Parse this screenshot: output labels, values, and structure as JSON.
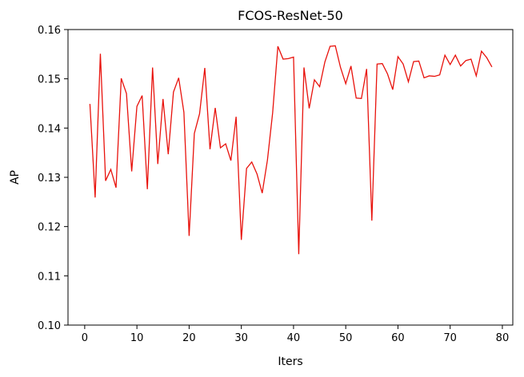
{
  "chart_data": {
    "type": "line",
    "title": "FCOS-ResNet-50",
    "xlabel": "Iters",
    "ylabel": "AP",
    "xlim": [
      -3.2,
      82
    ],
    "ylim": [
      0.1,
      0.16
    ],
    "xticks": [
      0,
      10,
      20,
      30,
      40,
      50,
      60,
      70,
      80
    ],
    "xtick_labels": [
      "0",
      "10",
      "20",
      "30",
      "40",
      "50",
      "60",
      "70",
      "80"
    ],
    "yticks": [
      0.1,
      0.11,
      0.12,
      0.13,
      0.14,
      0.15,
      0.16
    ],
    "ytick_labels": [
      "0.10",
      "0.11",
      "0.12",
      "0.13",
      "0.14",
      "0.15",
      "0.16"
    ],
    "grid": false,
    "color": "#e8120c",
    "series": [
      {
        "x": [
          1,
          2,
          3,
          4,
          5,
          6,
          7,
          8,
          9,
          10,
          11,
          12,
          13,
          14,
          15,
          16,
          17,
          18,
          19,
          20,
          21,
          22,
          23,
          24,
          25,
          26,
          27,
          28,
          29,
          30,
          31,
          32,
          33,
          34,
          35,
          36,
          37,
          38,
          39,
          40,
          41,
          42,
          43,
          44,
          45,
          46,
          47,
          48,
          49,
          50,
          51,
          52,
          53,
          54,
          55,
          56,
          57,
          58,
          59,
          60,
          61,
          62,
          63,
          64,
          65,
          66,
          67,
          68,
          69,
          70,
          71,
          72,
          73,
          74,
          75,
          76,
          77,
          78
        ],
        "values": [
          0.1449,
          0.1259,
          0.1551,
          0.1293,
          0.1316,
          0.1279,
          0.1501,
          0.147,
          0.1312,
          0.1444,
          0.1466,
          0.1276,
          0.1523,
          0.1327,
          0.1459,
          0.1347,
          0.1473,
          0.1502,
          0.1432,
          0.1181,
          0.1389,
          0.1429,
          0.1522,
          0.1357,
          0.1441,
          0.136,
          0.1368,
          0.1334,
          0.1423,
          0.1173,
          0.1318,
          0.1331,
          0.1307,
          0.1268,
          0.1335,
          0.1431,
          0.1566,
          0.154,
          0.1541,
          0.1544,
          0.1144,
          0.1523,
          0.144,
          0.1498,
          0.1484,
          0.1534,
          0.1566,
          0.1567,
          0.1523,
          0.149,
          0.1526,
          0.1461,
          0.146,
          0.152,
          0.1212,
          0.153,
          0.1531,
          0.151,
          0.1478,
          0.1545,
          0.153,
          0.1494,
          0.1535,
          0.1536,
          0.1502,
          0.1506,
          0.1505,
          0.1508,
          0.1548,
          0.1529,
          0.1548,
          0.1526,
          0.1537,
          0.154,
          0.1506,
          0.1556,
          0.1543,
          0.1524
        ]
      }
    ]
  }
}
